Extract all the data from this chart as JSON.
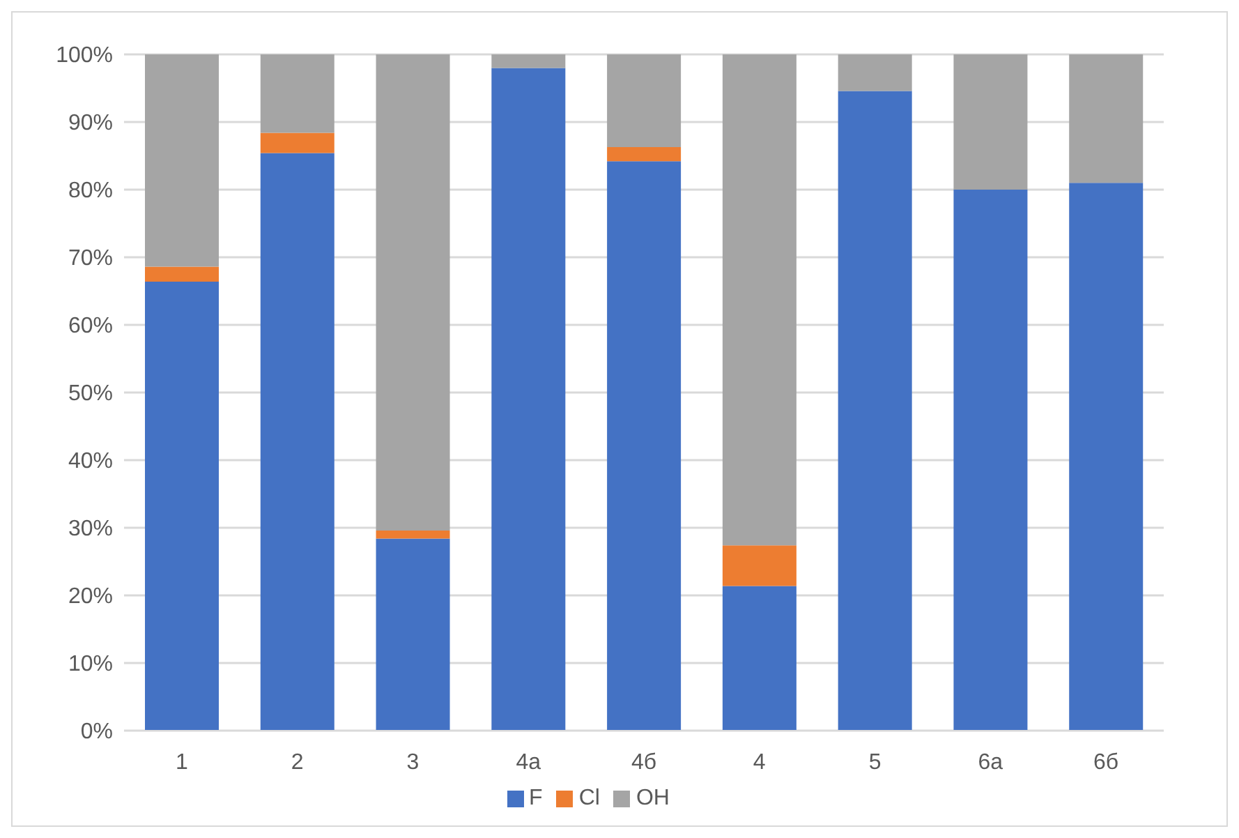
{
  "chart_data": {
    "type": "bar",
    "stacked": true,
    "categories": [
      "1",
      "2",
      "3",
      "4a",
      "4б",
      "4",
      "5",
      "6a",
      "6б"
    ],
    "series": [
      {
        "name": "F",
        "color": "#4472c4",
        "values": [
          66.4,
          85.4,
          28.4,
          98,
          84.2,
          21.4,
          94.6,
          80,
          81
        ]
      },
      {
        "name": "Cl",
        "color": "#ed7d31",
        "values": [
          2.2,
          3,
          1.2,
          0,
          2.1,
          6,
          0,
          0,
          0
        ]
      },
      {
        "name": "OH",
        "color": "#a5a5a5",
        "values": [
          31.4,
          11.6,
          70.4,
          2,
          13.7,
          72.6,
          5.4,
          20,
          19
        ]
      }
    ],
    "ylim": [
      0,
      100
    ],
    "yticks": [
      {
        "value": 0,
        "label": "0%"
      },
      {
        "value": 10,
        "label": "10%"
      },
      {
        "value": 20,
        "label": "20%"
      },
      {
        "value": 30,
        "label": "30%"
      },
      {
        "value": 40,
        "label": "40%"
      },
      {
        "value": 50,
        "label": "50%"
      },
      {
        "value": 60,
        "label": "60%"
      },
      {
        "value": 70,
        "label": "70%"
      },
      {
        "value": 80,
        "label": "80%"
      },
      {
        "value": 90,
        "label": "90%"
      },
      {
        "value": 100,
        "label": "100%"
      }
    ],
    "grid": "y",
    "legend": "bottom"
  }
}
